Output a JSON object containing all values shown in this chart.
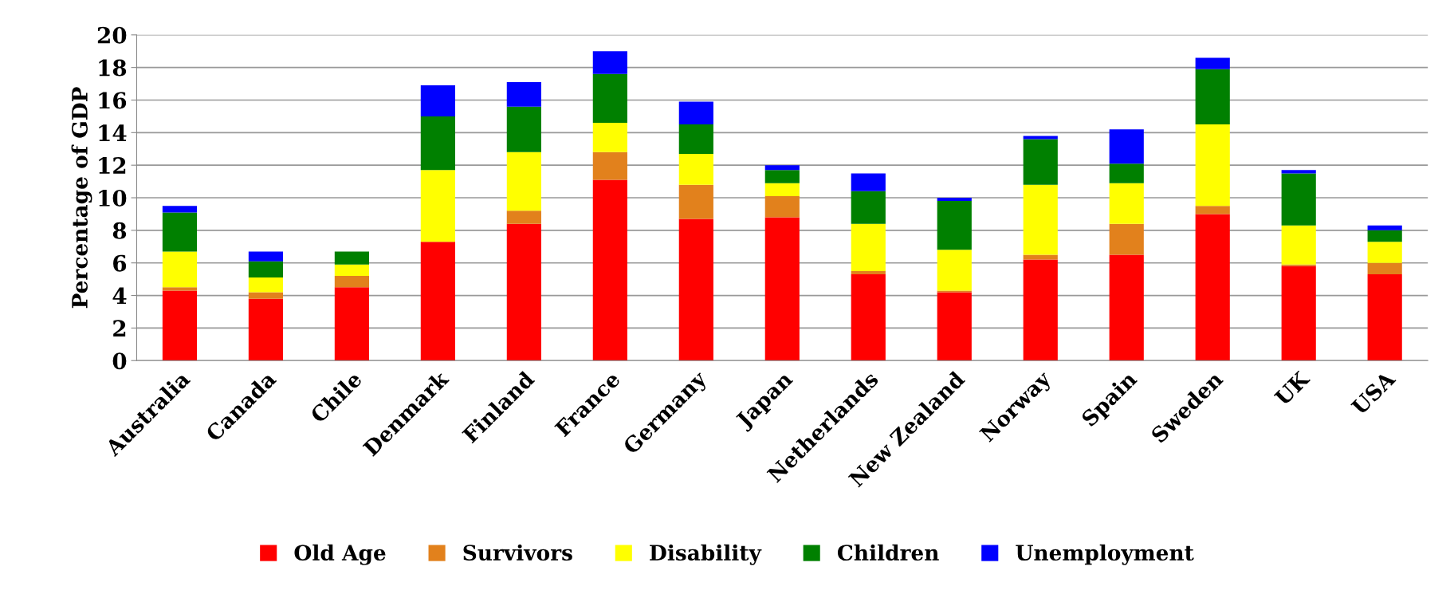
{
  "chart_data": {
    "type": "bar",
    "stacked": true,
    "ylabel": "Percentage of GDP",
    "categories": [
      "Australia",
      "Canada",
      "Chile",
      "Denmark",
      "Finland",
      "France",
      "Germany",
      "Japan",
      "Netherlands",
      "New Zealand",
      "Norway",
      "Spain",
      "Sweden",
      "UK",
      "USA"
    ],
    "series": [
      {
        "name": "Old Age",
        "color": "#ff0000",
        "values": [
          4.3,
          3.8,
          4.5,
          7.3,
          8.4,
          11.1,
          8.7,
          8.8,
          5.3,
          4.2,
          6.2,
          6.5,
          9.0,
          5.8,
          5.3
        ]
      },
      {
        "name": "Survivors",
        "color": "#e2811c",
        "values": [
          0.2,
          0.4,
          0.7,
          0,
          0.8,
          1.7,
          2.1,
          1.3,
          0.2,
          0.1,
          0.3,
          1.9,
          0.5,
          0.1,
          0.7
        ]
      },
      {
        "name": "Disability",
        "color": "#ffff00",
        "values": [
          2.2,
          0.9,
          0.7,
          4.4,
          3.6,
          1.8,
          1.9,
          0.8,
          2.9,
          2.5,
          4.3,
          2.5,
          5.0,
          2.4,
          1.3
        ]
      },
      {
        "name": "Children",
        "color": "#008000",
        "values": [
          2.4,
          1.0,
          0.8,
          3.3,
          2.8,
          3.0,
          1.8,
          0.8,
          2.0,
          3.0,
          2.8,
          1.2,
          3.4,
          3.2,
          0.7
        ]
      },
      {
        "name": "Unemployment",
        "color": "#0000ff",
        "values": [
          0.4,
          0.6,
          0,
          1.9,
          1.5,
          1.4,
          1.4,
          0.3,
          1.1,
          0.2,
          0.2,
          2.1,
          0.7,
          0.2,
          0.3
        ]
      }
    ],
    "ylim": [
      0,
      20
    ],
    "yticks": [
      0,
      2,
      4,
      6,
      8,
      10,
      12,
      14,
      16,
      18,
      20
    ],
    "grid": "y",
    "legend": "bottom"
  }
}
